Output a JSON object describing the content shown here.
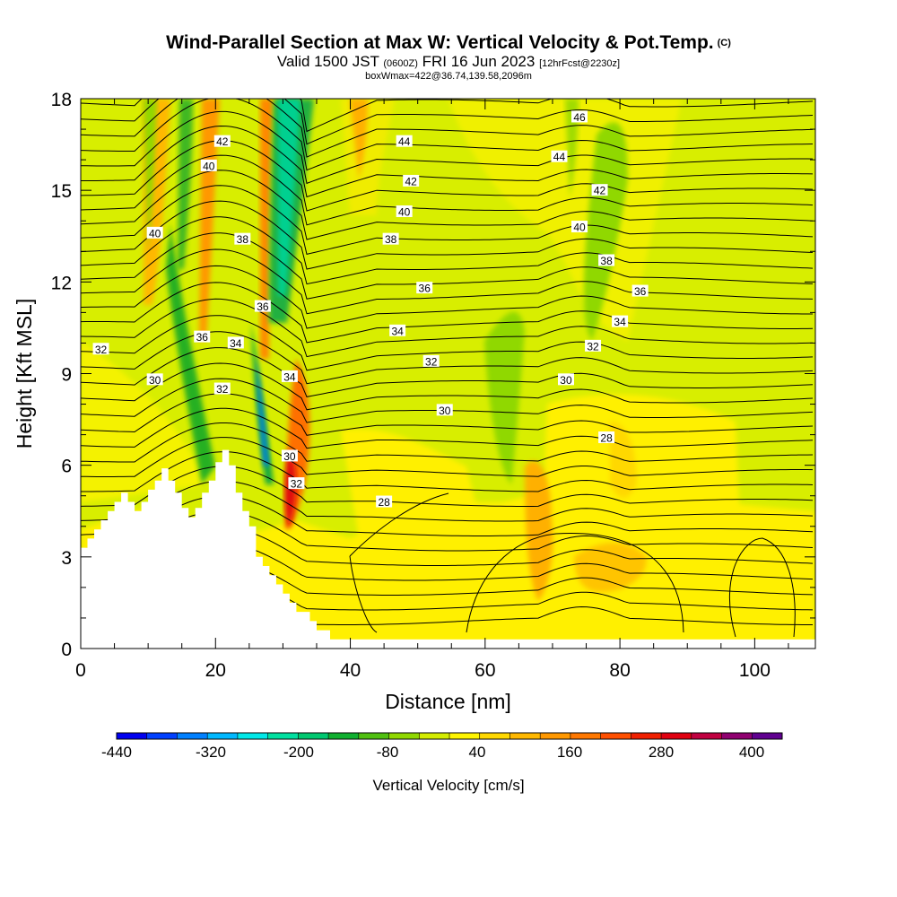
{
  "header": {
    "title": "Wind-Parallel Section at Max W: Vertical Velocity & Pot.Temp.",
    "title_tag": "(C)",
    "valid_prefix": "Valid 1500 JST",
    "valid_utc": "(0600Z)",
    "valid_date": "FRI 16 Jun 2023",
    "forecast_info": "[12hrFcst@2230z]",
    "box_info": "boxWmax=422@36.74,139.58,2096m"
  },
  "chart_data": {
    "type": "heatmap",
    "xlabel": "Distance [nm]",
    "ylabel": "Height [Kft MSL]",
    "xlim": [
      0,
      109
    ],
    "ylim": [
      0,
      18
    ],
    "x_ticks": [
      0,
      20,
      40,
      60,
      80,
      100
    ],
    "y_ticks": [
      0,
      3,
      6,
      9,
      12,
      15,
      18
    ],
    "colorbar": {
      "title": "Vertical Velocity [cm/s]",
      "tick_labels": [
        "-440",
        "-320",
        "-200",
        "-80",
        "40",
        "160",
        "280",
        "400"
      ],
      "colors": [
        "#0000f0",
        "#0040ff",
        "#0080ff",
        "#00b8ff",
        "#00e8e8",
        "#00e0a0",
        "#00c870",
        "#10b030",
        "#50c010",
        "#90d800",
        "#d4ec00",
        "#fff500",
        "#ffd800",
        "#ffb800",
        "#ff9800",
        "#ff7800",
        "#ff5000",
        "#f02000",
        "#e00010",
        "#c00040",
        "#900070",
        "#600090"
      ]
    },
    "background_color": "#d8ee00",
    "terrain_profile": [
      [
        0,
        3.3
      ],
      [
        1,
        3.3
      ],
      [
        1,
        3.6
      ],
      [
        2,
        3.6
      ],
      [
        2,
        3.9
      ],
      [
        3,
        3.9
      ],
      [
        3,
        4.2
      ],
      [
        4,
        4.2
      ],
      [
        4,
        4.5
      ],
      [
        5,
        4.5
      ],
      [
        5,
        4.8
      ],
      [
        6,
        4.8
      ],
      [
        6,
        5.1
      ],
      [
        7,
        5.1
      ],
      [
        7,
        4.8
      ],
      [
        8,
        4.8
      ],
      [
        8,
        4.5
      ],
      [
        9,
        4.5
      ],
      [
        9,
        4.8
      ],
      [
        10,
        4.8
      ],
      [
        10,
        5.2
      ],
      [
        11,
        5.2
      ],
      [
        11,
        5.5
      ],
      [
        12,
        5.5
      ],
      [
        12,
        5.9
      ],
      [
        13,
        5.9
      ],
      [
        13,
        5.5
      ],
      [
        14,
        5.5
      ],
      [
        14,
        5.1
      ],
      [
        15,
        5.1
      ],
      [
        15,
        4.6
      ],
      [
        16,
        4.6
      ],
      [
        16,
        4.3
      ],
      [
        17,
        4.3
      ],
      [
        17,
        4.6
      ],
      [
        18,
        4.6
      ],
      [
        18,
        5.1
      ],
      [
        19,
        5.1
      ],
      [
        19,
        5.5
      ],
      [
        20,
        5.5
      ],
      [
        20,
        6.1
      ],
      [
        21,
        6.1
      ],
      [
        21,
        6.5
      ],
      [
        22,
        6.5
      ],
      [
        22,
        6.0
      ],
      [
        23,
        6.0
      ],
      [
        23,
        5.1
      ],
      [
        24,
        5.1
      ],
      [
        24,
        4.5
      ],
      [
        25,
        4.5
      ],
      [
        25,
        4.0
      ],
      [
        26,
        4.0
      ],
      [
        26,
        3.0
      ],
      [
        27,
        3.0
      ],
      [
        27,
        2.7
      ],
      [
        28,
        2.7
      ],
      [
        28,
        2.4
      ],
      [
        29,
        2.4
      ],
      [
        29,
        2.1
      ],
      [
        30,
        2.1
      ],
      [
        30,
        1.8
      ],
      [
        31,
        1.8
      ],
      [
        31,
        1.5
      ],
      [
        32,
        1.5
      ],
      [
        32,
        1.2
      ],
      [
        34,
        1.2
      ],
      [
        34,
        0.9
      ],
      [
        35,
        0.9
      ],
      [
        35,
        0.6
      ],
      [
        37,
        0.6
      ],
      [
        37,
        0.3
      ],
      [
        40,
        0.3
      ],
      [
        40,
        0
      ]
    ],
    "theta_contours": [
      {
        "label": "28",
        "x": 45,
        "y": 4.8
      },
      {
        "label": "28",
        "x": 78,
        "y": 6.9
      },
      {
        "label": "30",
        "x": 31,
        "y": 6.3
      },
      {
        "label": "30",
        "x": 54,
        "y": 7.8
      },
      {
        "label": "30",
        "x": 72,
        "y": 8.8
      },
      {
        "label": "30",
        "x": 11,
        "y": 8.8
      },
      {
        "label": "32",
        "x": 3,
        "y": 9.8
      },
      {
        "label": "32",
        "x": 21,
        "y": 8.5
      },
      {
        "label": "32",
        "x": 32,
        "y": 5.4
      },
      {
        "label": "32",
        "x": 52,
        "y": 9.4
      },
      {
        "label": "32",
        "x": 76,
        "y": 9.9
      },
      {
        "label": "34",
        "x": 23,
        "y": 10.0
      },
      {
        "label": "34",
        "x": 31,
        "y": 8.9
      },
      {
        "label": "34",
        "x": 47,
        "y": 10.4
      },
      {
        "label": "34",
        "x": 80,
        "y": 10.7
      },
      {
        "label": "36",
        "x": 18,
        "y": 10.2
      },
      {
        "label": "36",
        "x": 27,
        "y": 11.2
      },
      {
        "label": "36",
        "x": 51,
        "y": 11.8
      },
      {
        "label": "36",
        "x": 83,
        "y": 11.7
      },
      {
        "label": "38",
        "x": 24,
        "y": 13.4
      },
      {
        "label": "38",
        "x": 46,
        "y": 13.4
      },
      {
        "label": "38",
        "x": 78,
        "y": 12.7
      },
      {
        "label": "40",
        "x": 11,
        "y": 13.6
      },
      {
        "label": "40",
        "x": 19,
        "y": 15.8
      },
      {
        "label": "40",
        "x": 48,
        "y": 14.3
      },
      {
        "label": "40",
        "x": 74,
        "y": 13.8
      },
      {
        "label": "42",
        "x": 21,
        "y": 16.6
      },
      {
        "label": "42",
        "x": 49,
        "y": 15.3
      },
      {
        "label": "42",
        "x": 77,
        "y": 15.0
      },
      {
        "label": "44",
        "x": 48,
        "y": 16.6
      },
      {
        "label": "44",
        "x": 71,
        "y": 16.1
      },
      {
        "label": "46",
        "x": 74,
        "y": 17.4
      }
    ]
  }
}
